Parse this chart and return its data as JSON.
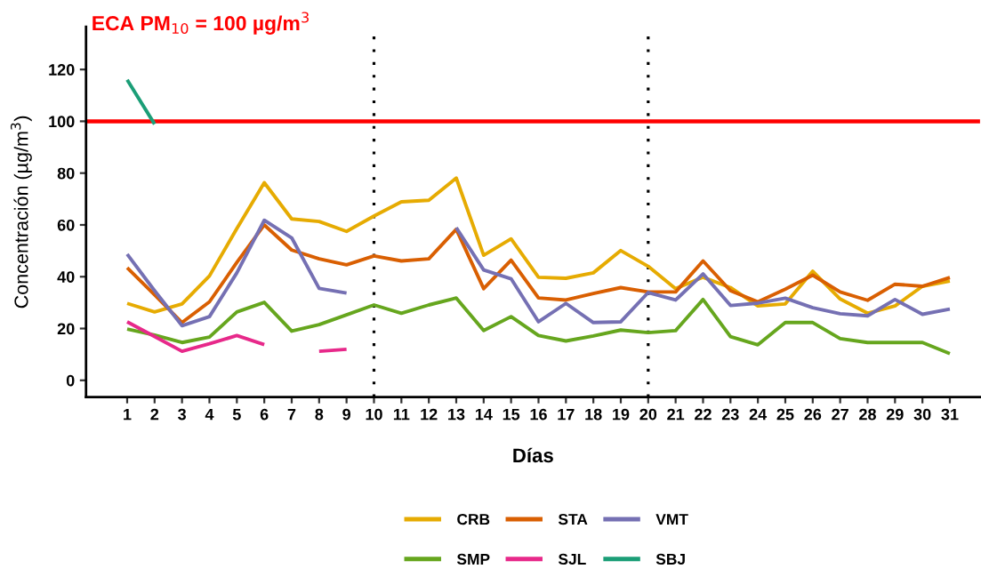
{
  "chart_data": {
    "type": "line",
    "xlabel": "Días",
    "ylabel": "Concentración (µg/m$^{3}$)",
    "x": [
      1,
      2,
      3,
      4,
      5,
      6,
      7,
      8,
      9,
      10,
      11,
      12,
      13,
      14,
      15,
      16,
      17,
      18,
      19,
      20,
      21,
      22,
      23,
      24,
      25,
      26,
      27,
      28,
      29,
      30,
      31
    ],
    "xlim": [
      -0.5,
      32.1
    ],
    "xticks": [
      1,
      2,
      3,
      4,
      5,
      6,
      7,
      8,
      9,
      10,
      11,
      12,
      13,
      14,
      15,
      16,
      17,
      18,
      19,
      20,
      21,
      22,
      23,
      24,
      25,
      26,
      27,
      28,
      29,
      30,
      31
    ],
    "ylim": [
      -6.5,
      136.5
    ],
    "yticks": [
      0,
      20,
      40,
      60,
      80,
      100,
      120
    ],
    "series": [
      {
        "name": "CRB",
        "color": "#e6ab02",
        "values": [
          29.7,
          26.4,
          29.5,
          40.3,
          58.6,
          76.3,
          62.3,
          61.3,
          57.5,
          63.4,
          68.9,
          69.5,
          78.1,
          48.3,
          54.6,
          39.8,
          39.4,
          41.5,
          50.1,
          44.0,
          35.4,
          39.8,
          35.8,
          28.7,
          29.5,
          42.1,
          31.4,
          25.9,
          28.7,
          36.3,
          38.3
        ]
      },
      {
        "name": "STA",
        "color": "#d95f02",
        "values": [
          43.5,
          33.0,
          22.3,
          30.3,
          45.5,
          60.0,
          50.3,
          46.9,
          44.6,
          48.0,
          46.1,
          46.9,
          58.3,
          35.4,
          46.4,
          31.8,
          31.0,
          33.5,
          35.8,
          34.1,
          34.1,
          46.1,
          34.6,
          30.3,
          35.2,
          40.6,
          34.1,
          30.9,
          37.1,
          36.3,
          39.7
        ]
      },
      {
        "name": "VMT",
        "color": "#7570b3",
        "values": [
          48.7,
          34.6,
          21.1,
          24.6,
          41.5,
          61.8,
          55.0,
          35.5,
          33.7,
          null,
          null,
          null,
          58.9,
          42.6,
          39.2,
          22.6,
          29.7,
          22.3,
          22.6,
          33.9,
          31.0,
          41.1,
          28.9,
          29.8,
          31.7,
          28.0,
          25.7,
          24.9,
          31.2,
          25.5,
          27.5
        ]
      },
      {
        "name": "SMP",
        "color": "#66a61e",
        "values": [
          19.8,
          17.5,
          14.6,
          16.7,
          26.4,
          30.1,
          19.0,
          21.5,
          25.3,
          29.1,
          25.9,
          29.1,
          31.8,
          19.2,
          24.6,
          17.3,
          15.2,
          17.1,
          19.4,
          18.4,
          19.2,
          31.2,
          16.9,
          13.7,
          22.3,
          22.3,
          16.1,
          14.6,
          14.6,
          14.6,
          10.3
        ]
      },
      {
        "name": "SJL",
        "color": "#e7298a",
        "values": [
          22.6,
          16.9,
          11.2,
          14.1,
          17.3,
          13.8,
          null,
          11.2,
          12.0,
          null,
          null,
          null,
          null,
          null,
          null,
          null,
          null,
          null,
          null,
          null,
          null,
          null,
          null,
          null,
          null,
          null,
          null,
          null,
          null,
          null,
          null
        ]
      },
      {
        "name": "SBJ",
        "color": "#1b9e77",
        "values": [
          116.0,
          98.9,
          null,
          null,
          null,
          null,
          null,
          null,
          null,
          null,
          null,
          null,
          null,
          null,
          null,
          null,
          null,
          null,
          null,
          null,
          null,
          null,
          null,
          null,
          null,
          null,
          null,
          null,
          null,
          null,
          null
        ]
      }
    ],
    "ref_lines": [
      {
        "axis": "y",
        "value": 100,
        "label": "ECA PM$_{10}$ = 100 µg/m$^{3}$",
        "color": "#ff0000",
        "line_style": "solid"
      },
      {
        "axis": "x",
        "value": 10,
        "color": "#000000",
        "line_style": "dotted"
      },
      {
        "axis": "x",
        "value": 20,
        "color": "#000000",
        "line_style": "dotted"
      }
    ],
    "legend": "bottom",
    "grid": false,
    "line_style": "solid"
  }
}
